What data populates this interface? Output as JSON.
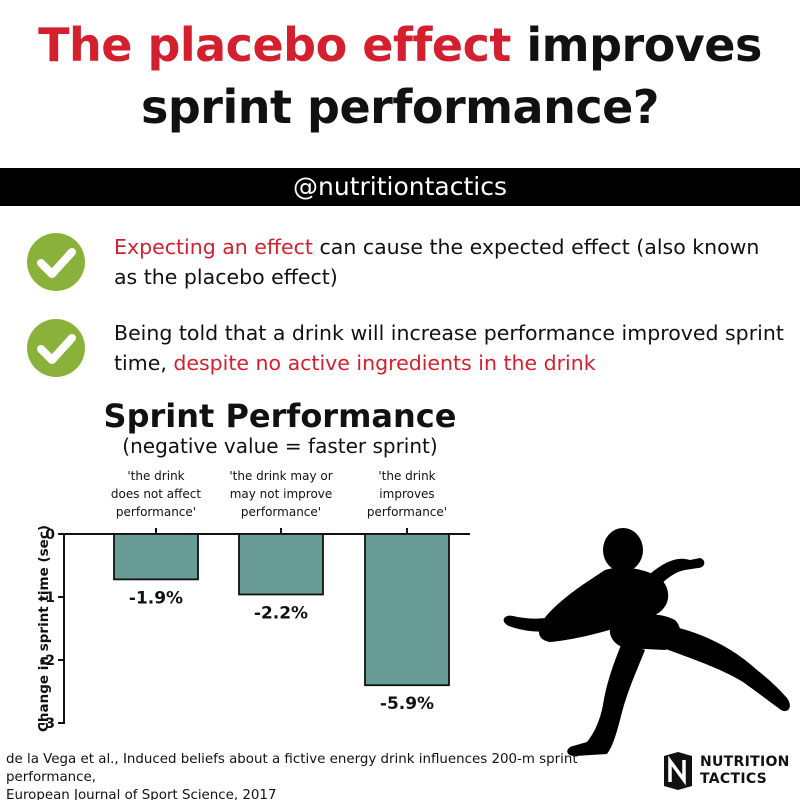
{
  "header": {
    "title_red": "The placebo effect",
    "title_rest_line1": " improves",
    "title_line2": "sprint performance?"
  },
  "handle": "@nutritiontactics",
  "points": [
    {
      "icon": "check-icon",
      "red_text": "Expecting an effect",
      "text": " can cause the expected effect (also known as the placebo effect)"
    },
    {
      "icon": "check-icon",
      "text": "Being told that a drink will increase performance improved sprint time, ",
      "red_text": "despite no active ingredients in the drink"
    }
  ],
  "colors": {
    "accent_red": "#d4202e",
    "bar_fill": "#6a9c97",
    "check_green": "#8ab23a"
  },
  "chart_data": {
    "type": "bar",
    "title": "Sprint Performance",
    "subtitle": "(negative value = faster sprint)",
    "ylabel": "Change in sprint time (sec)",
    "ylim": [
      -3,
      0
    ],
    "yticks": [
      "0",
      "-1",
      "-2",
      "-3"
    ],
    "categories": [
      [
        "'the drink",
        "does not affect",
        "performance'"
      ],
      [
        "'the drink may or",
        "may not improve",
        "performance'"
      ],
      [
        "'the drink",
        "improves",
        "performance'"
      ]
    ],
    "values": [
      -0.72,
      -0.96,
      -2.4
    ],
    "data_labels": [
      "-1.9%",
      "-2.2%",
      "-5.9%"
    ],
    "grid": false
  },
  "runner_icon": "sprinter-silhouette-icon",
  "citation": {
    "line1": "de la Vega et al., Induced beliefs about a fictive energy drink influences 200-m sprint performance,",
    "line2": "European Journal of Sport Science, 2017"
  },
  "brand": {
    "logo_icon": "nutrition-tactics-logo-icon",
    "line1": "NUTRITION",
    "line2": "TACTICS"
  }
}
